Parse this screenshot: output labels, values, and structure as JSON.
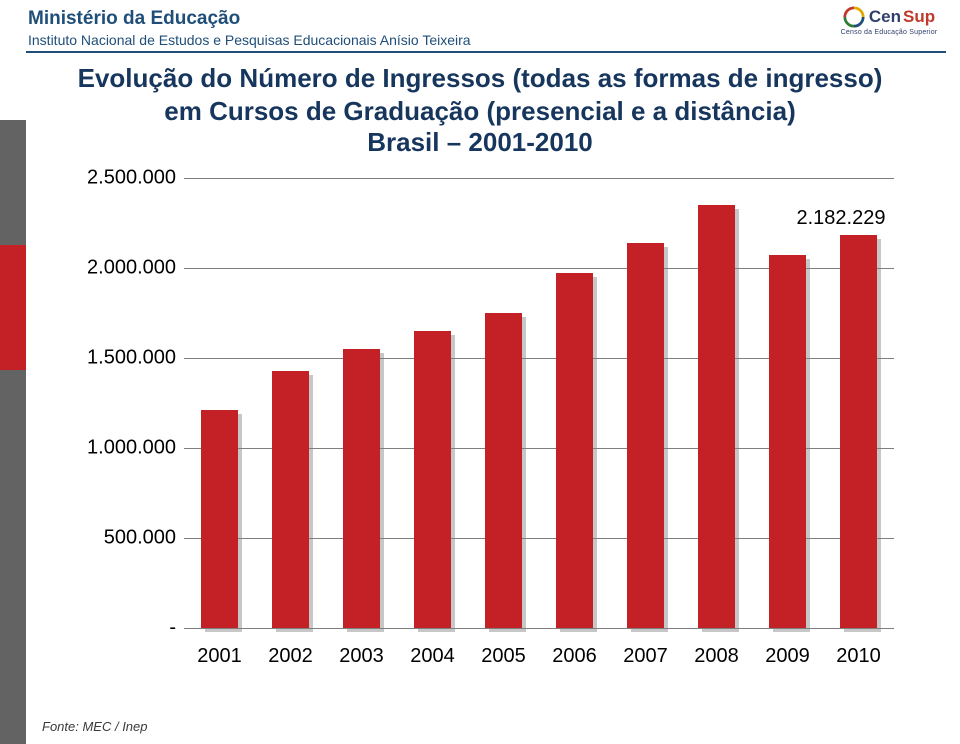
{
  "header": {
    "ministry": "Ministério da Educação",
    "institute": "Instituto Nacional de Estudos e Pesquisas Educacionais Anísio Teixeira",
    "logo_text": "Cen",
    "logo_sup": "Sup",
    "logo_sub": "Censo da Educação Superior"
  },
  "title": {
    "line1": "Evolução do Número de Ingressos (todas as formas de ingresso) em Cursos de Graduação (presencial e a distância)",
    "line2": "Brasil – 2001-2010"
  },
  "chart": {
    "type": "bar",
    "categories": [
      "2001",
      "2002",
      "2003",
      "2004",
      "2005",
      "2006",
      "2007",
      "2008",
      "2009",
      "2010"
    ],
    "values": [
      1210000,
      1430000,
      1550000,
      1650000,
      1750000,
      1970000,
      2140000,
      2350000,
      2070000,
      2182229
    ],
    "bar_color": "#c42127",
    "value_label": {
      "index": 9,
      "text": "2.182.229",
      "color": "#000000",
      "fontsize": 20
    },
    "ymin": 0,
    "ymax": 2500000,
    "yticks": [
      {
        "v": 0,
        "label": "-"
      },
      {
        "v": 500000,
        "label": "500.000"
      },
      {
        "v": 1000000,
        "label": "1.000.000"
      },
      {
        "v": 1500000,
        "label": "1.500.000"
      },
      {
        "v": 2000000,
        "label": "2.000.000"
      },
      {
        "v": 2500000,
        "label": "2.500.000"
      }
    ],
    "grid_color": "#7f7f7f",
    "background_color": "#ffffff",
    "bar_width": 0.52,
    "axis_label_fontsize": 20,
    "tick_label_fontsize": 20
  },
  "left_strip_colors": [
    "#636363",
    "#636363",
    "#c42127",
    "#c42127",
    "#636363",
    "#636363",
    "#636363",
    "#636363",
    "#636363",
    "#636363"
  ],
  "source": "Fonte: MEC / Inep"
}
